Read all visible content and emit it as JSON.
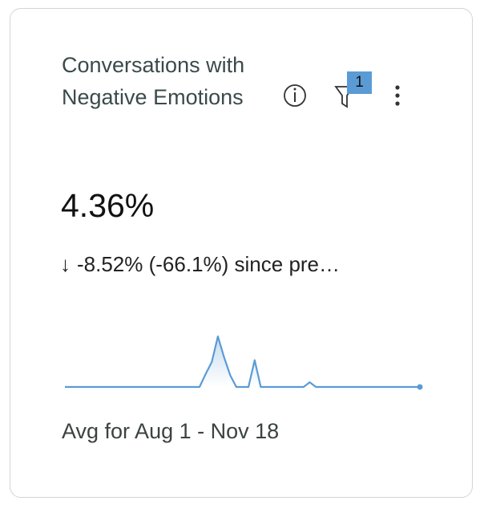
{
  "card": {
    "title": "Conversations with Negative Emotions",
    "filter_count": "1",
    "metric": "4.36%",
    "change": "-8.52% (-66.1%) since pre…",
    "footer": "Avg for Aug 1 - Nov 18",
    "sparkline": {
      "type": "line",
      "color": "#5b9bd5",
      "values": [
        0,
        0,
        0,
        0,
        0,
        0,
        0,
        0,
        0,
        0,
        0,
        0,
        0,
        0,
        0,
        0,
        0,
        0,
        0,
        0,
        0,
        0,
        0,
        2.2,
        4.2,
        8.5,
        5,
        2,
        0,
        0,
        0,
        4.5,
        0,
        0,
        0,
        0,
        0,
        0,
        0,
        0,
        0.8,
        0,
        0,
        0,
        0,
        0,
        0,
        0,
        0,
        0,
        0,
        0,
        0,
        0,
        0,
        0,
        0,
        0,
        0
      ]
    }
  }
}
